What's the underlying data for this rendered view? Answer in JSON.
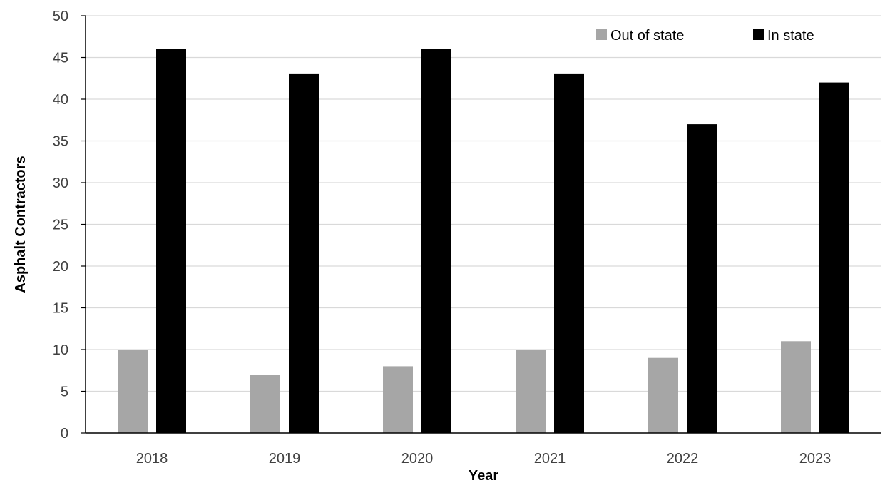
{
  "chart_data": {
    "type": "bar",
    "title": "",
    "xlabel": "Year",
    "ylabel": "Asphalt Contractors",
    "categories": [
      "2018",
      "2019",
      "2020",
      "2021",
      "2022",
      "2023"
    ],
    "series": [
      {
        "name": "Out of state",
        "values": [
          10,
          7,
          8,
          10,
          9,
          11
        ],
        "color": "#a6a6a6"
      },
      {
        "name": "In state",
        "values": [
          46,
          43,
          46,
          43,
          37,
          42
        ],
        "color": "#000000"
      }
    ],
    "ylim": [
      0,
      50
    ],
    "yticks": [
      0,
      5,
      10,
      15,
      20,
      25,
      30,
      35,
      40,
      45,
      50
    ],
    "grid": true,
    "gridline_color": "#d9d9d9",
    "legend_position": "top-right"
  }
}
